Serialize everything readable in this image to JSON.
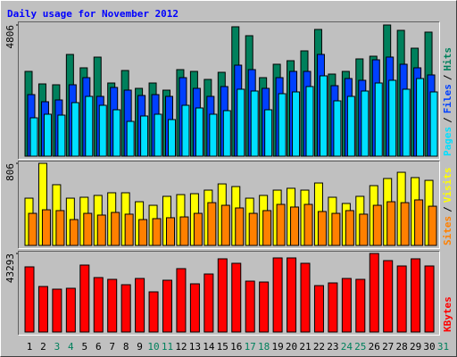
{
  "title": "Daily usage for November 2012",
  "separator": "/",
  "chart_data": [
    {
      "type": "bar",
      "ylim": [
        0,
        4806
      ],
      "yticks": [
        4806
      ],
      "series": [
        {
          "name": "Pages",
          "color": "#00e0ff",
          "values": [
            1406,
            1537,
            1504,
            1962,
            2191,
            1864,
            1700,
            1275,
            1472,
            1537,
            1341,
            1864,
            1766,
            1537,
            1668,
            2453,
            2387,
            1700,
            2289,
            2354,
            2551,
            2943,
            2027,
            2191,
            2387,
            2681,
            2780,
            2453,
            2845,
            2354,
            0
          ]
        },
        {
          "name": "Files",
          "color": "#0040ff",
          "values": [
            2256,
            1995,
            2060,
            2616,
            2877,
            2191,
            2518,
            2420,
            2224,
            2256,
            2191,
            2877,
            2485,
            2191,
            2551,
            3335,
            3172,
            2485,
            2877,
            3106,
            3106,
            3728,
            2583,
            2845,
            2780,
            3531,
            3630,
            3368,
            3237,
            2976,
            0
          ]
        },
        {
          "name": "Hits",
          "color": "#00805c",
          "values": [
            3106,
            2648,
            2616,
            3727,
            3237,
            3629,
            2681,
            3139,
            2485,
            2681,
            2419,
            3171,
            3106,
            2812,
            3073,
            4741,
            4414,
            2877,
            3368,
            3498,
            3858,
            4643,
            3008,
            3106,
            3564,
            3662,
            4806,
            4610,
            3956,
            4545,
            0
          ]
        }
      ]
    },
    {
      "type": "bar",
      "ylim": [
        0,
        806
      ],
      "yticks": [
        806
      ],
      "series": [
        {
          "name": "Sites",
          "color": "#ff8000",
          "values": [
            315,
            350,
            342,
            254,
            315,
            298,
            324,
            307,
            254,
            263,
            272,
            280,
            315,
            420,
            394,
            368,
            315,
            342,
            403,
            377,
            403,
            333,
            315,
            342,
            307,
            394,
            429,
            420,
            447,
            385,
            0
          ]
        },
        {
          "name": "Visits",
          "color": "#ffff00",
          "values": [
            464,
            806,
            596,
            464,
            473,
            491,
            517,
            517,
            429,
            394,
            482,
            499,
            508,
            543,
            604,
            578,
            464,
            491,
            543,
            561,
            543,
            613,
            473,
            412,
            482,
            587,
            657,
            718,
            666,
            639,
            0
          ]
        }
      ]
    },
    {
      "type": "bar",
      "ylim": [
        0,
        43293
      ],
      "yticks": [
        43293
      ],
      "categories": [
        "1",
        "2",
        "3",
        "4",
        "5",
        "6",
        "7",
        "8",
        "9",
        "10",
        "11",
        "12",
        "13",
        "14",
        "15",
        "16",
        "17",
        "18",
        "19",
        "20",
        "21",
        "22",
        "23",
        "24",
        "25",
        "26",
        "27",
        "28",
        "29",
        "30",
        "31"
      ],
      "category_colors": [
        "#000000",
        "#000000",
        "#00805c",
        "#00805c",
        "#000000",
        "#000000",
        "#000000",
        "#000000",
        "#000000",
        "#00805c",
        "#00805c",
        "#000000",
        "#000000",
        "#000000",
        "#000000",
        "#000000",
        "#00805c",
        "#00805c",
        "#000000",
        "#000000",
        "#000000",
        "#000000",
        "#000000",
        "#00805c",
        "#00805c",
        "#000000",
        "#000000",
        "#000000",
        "#000000",
        "#000000",
        "#00805c"
      ],
      "series": [
        {
          "name": "KBytes",
          "color": "#ff0000",
          "values": [
            35916,
            25092,
            23616,
            24108,
            36900,
            30012,
            29028,
            26076,
            29520,
            22140,
            28536,
            34932,
            26568,
            31980,
            40344,
            37884,
            28044,
            27552,
            40836,
            40836,
            37884,
            25584,
            27060,
            29520,
            29028,
            43293,
            39360,
            36408,
            40344,
            36408,
            0
          ]
        }
      ]
    }
  ]
}
